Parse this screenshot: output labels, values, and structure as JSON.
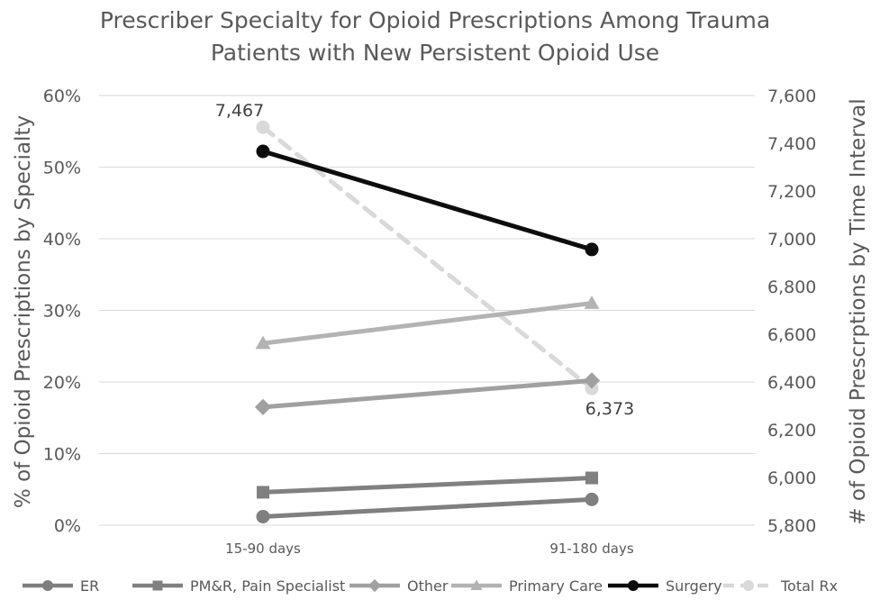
{
  "chart_data": {
    "type": "line",
    "title": "Prescriber Specialty for Opioid Prescriptions Among Trauma Patients with New Persistent Opioid Use",
    "title_lines": [
      "Prescriber Specialty for Opioid Prescriptions Among Trauma",
      "Patients with New Persistent Opioid Use"
    ],
    "categories": [
      "15-90 days",
      "91-180 days"
    ],
    "ylabel": "% of Opioid  Prescriptions by Specialty",
    "y2label": "# of Opioid Prescrptions by Time Interval",
    "ylim": [
      0,
      0.6
    ],
    "yticks": [
      0,
      0.1,
      0.2,
      0.3,
      0.4,
      0.5,
      0.6
    ],
    "ytick_labels": [
      "0%",
      "10%",
      "20%",
      "30%",
      "40%",
      "50%",
      "60%"
    ],
    "y2lim": [
      5800,
      7600
    ],
    "y2ticks": [
      5800,
      6000,
      6200,
      6400,
      6600,
      6800,
      7000,
      7200,
      7400,
      7600
    ],
    "y2tick_labels": [
      "5,800",
      "6,000",
      "6,200",
      "6,400",
      "6,600",
      "6,800",
      "7,000",
      "7,200",
      "7,400",
      "7,600"
    ],
    "grid": true,
    "legend_position": "bottom",
    "series": [
      {
        "name": "ER",
        "values": [
          0.012,
          0.036
        ],
        "axis": "left",
        "color": "#7f7f7f",
        "marker": "circle",
        "dash": false
      },
      {
        "name": "PM&R, Pain Specialist",
        "values": [
          0.046,
          0.066
        ],
        "axis": "left",
        "color": "#808080",
        "marker": "square",
        "dash": false
      },
      {
        "name": "Other",
        "values": [
          0.165,
          0.202
        ],
        "axis": "left",
        "color": "#a0a0a0",
        "marker": "diamond",
        "dash": false
      },
      {
        "name": "Primary Care",
        "values": [
          0.254,
          0.31
        ],
        "axis": "left",
        "color": "#b3b3b3",
        "marker": "triangle",
        "dash": false
      },
      {
        "name": "Surgery",
        "values": [
          0.522,
          0.385
        ],
        "axis": "left",
        "color": "#0d0d0d",
        "marker": "circle",
        "dash": false
      },
      {
        "name": "Total Rx",
        "values": [
          7467,
          6373
        ],
        "axis": "right",
        "color": "#d9d9d9",
        "marker": "circle",
        "dash": true,
        "data_labels": [
          "7,467",
          "6,373"
        ]
      }
    ]
  }
}
